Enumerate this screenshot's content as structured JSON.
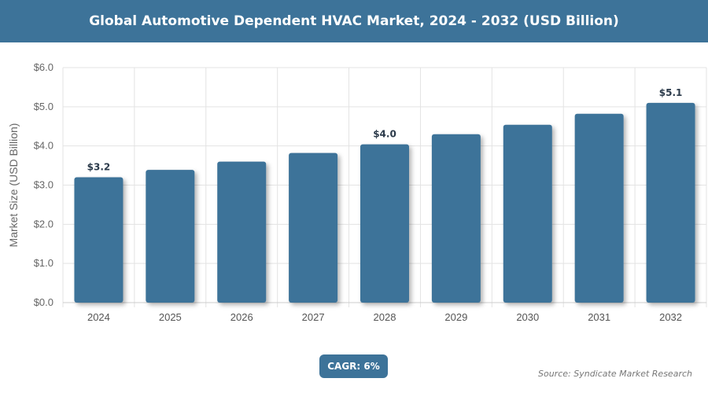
{
  "header": {
    "title": "Global Automotive Dependent HVAC Market, 2024 - 2032 (USD Billion)"
  },
  "chart_data": {
    "type": "bar",
    "title": "Global Automotive Dependent HVAC Market, 2024 - 2032 (USD Billion)",
    "categories": [
      "2024",
      "2025",
      "2026",
      "2027",
      "2028",
      "2029",
      "2030",
      "2031",
      "2032"
    ],
    "values": [
      3.2,
      3.39,
      3.6,
      3.82,
      4.04,
      4.3,
      4.54,
      4.82,
      5.1
    ],
    "data_labels": {
      "0": "$3.2",
      "4": "$4.0",
      "8": "$5.1"
    },
    "xlabel": "",
    "ylabel": "Market Size (USD Billion)",
    "ylim": [
      0,
      6
    ],
    "yticks": [
      "$0.0",
      "$1.0",
      "$2.0",
      "$3.0",
      "$4.0",
      "$5.0",
      "$6.0"
    ],
    "grid": true,
    "bar_color": "#3d7399"
  },
  "footer": {
    "cagr": "CAGR: 6%",
    "source": "Source: Syndicate Market Research"
  }
}
